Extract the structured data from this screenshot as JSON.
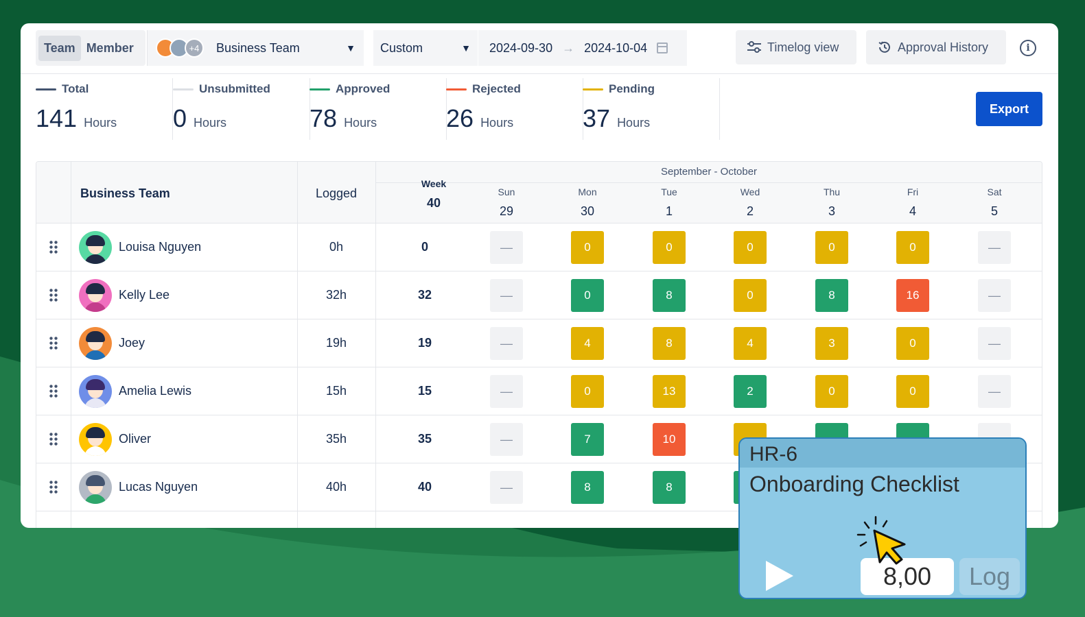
{
  "colors": {
    "background": "#0b5a33",
    "accent": "#0c52cc",
    "approved": "#22a06b",
    "pending": "#e2b203",
    "rejected": "#f15b35",
    "total": "#44546f",
    "unsubmitted": "#dcdfe4"
  },
  "toolbar": {
    "view_toggle": [
      "Team",
      "Member"
    ],
    "team_select": {
      "more_count": "+4",
      "label": "Business Team"
    },
    "range_select": "Custom",
    "date_start": "2024-09-30",
    "date_end": "2024-10-04",
    "timelog_view": "Timelog view",
    "approval_history": "Approval History"
  },
  "stats": [
    {
      "label": "Total",
      "value": "141",
      "unit": "Hours",
      "color": "#44546f"
    },
    {
      "label": "Unsubmitted",
      "value": "0",
      "unit": "Hours",
      "color": "#dcdfe4"
    },
    {
      "label": "Approved",
      "value": "78",
      "unit": "Hours",
      "color": "#22a06b"
    },
    {
      "label": "Rejected",
      "value": "26",
      "unit": "Hours",
      "color": "#f15b35"
    },
    {
      "label": "Pending",
      "value": "37",
      "unit": "Hours",
      "color": "#e2b203"
    }
  ],
  "export_label": "Export",
  "table": {
    "team_header": "Business Team",
    "logged_header": "Logged",
    "month_header": "September - October",
    "columns": [
      {
        "name": "Week",
        "num": "40"
      },
      {
        "name": "Sun",
        "num": "29"
      },
      {
        "name": "Mon",
        "num": "30"
      },
      {
        "name": "Tue",
        "num": "1"
      },
      {
        "name": "Wed",
        "num": "2"
      },
      {
        "name": "Thu",
        "num": "3"
      },
      {
        "name": "Fri",
        "num": "4"
      },
      {
        "name": "Sat",
        "num": "5"
      }
    ],
    "rows": [
      {
        "name": "Louisa Nguyen",
        "logged": "0h",
        "week": "0",
        "cells": [
          [
            "—",
            "empty"
          ],
          [
            "0",
            "y"
          ],
          [
            "0",
            "y"
          ],
          [
            "0",
            "y"
          ],
          [
            "0",
            "y"
          ],
          [
            "0",
            "y"
          ],
          [
            "—",
            "empty"
          ]
        ]
      },
      {
        "name": "Kelly Lee",
        "logged": "32h",
        "week": "32",
        "cells": [
          [
            "—",
            "empty"
          ],
          [
            "0",
            "g"
          ],
          [
            "8",
            "g"
          ],
          [
            "0",
            "y"
          ],
          [
            "8",
            "g"
          ],
          [
            "16",
            "r"
          ],
          [
            "—",
            "empty"
          ]
        ]
      },
      {
        "name": "Joey",
        "logged": "19h",
        "week": "19",
        "cells": [
          [
            "—",
            "empty"
          ],
          [
            "4",
            "y"
          ],
          [
            "8",
            "y"
          ],
          [
            "4",
            "y"
          ],
          [
            "3",
            "y"
          ],
          [
            "0",
            "y"
          ],
          [
            "—",
            "empty"
          ]
        ]
      },
      {
        "name": "Amelia Lewis",
        "logged": "15h",
        "week": "15",
        "cells": [
          [
            "—",
            "empty"
          ],
          [
            "0",
            "y"
          ],
          [
            "13",
            "y"
          ],
          [
            "2",
            "g"
          ],
          [
            "0",
            "y"
          ],
          [
            "0",
            "y"
          ],
          [
            "—",
            "empty"
          ]
        ]
      },
      {
        "name": "Oliver",
        "logged": "35h",
        "week": "35",
        "cells": [
          [
            "—",
            "empty"
          ],
          [
            "7",
            "g"
          ],
          [
            "10",
            "r"
          ],
          [
            "",
            "y"
          ],
          [
            "",
            "g"
          ],
          [
            "",
            "g"
          ],
          [
            "",
            "empty"
          ]
        ]
      },
      {
        "name": "Lucas Nguyen",
        "logged": "40h",
        "week": "40",
        "cells": [
          [
            "—",
            "empty"
          ],
          [
            "8",
            "g"
          ],
          [
            "8",
            "g"
          ],
          [
            "",
            "g"
          ],
          [
            "",
            "empty"
          ],
          [
            "",
            "empty"
          ],
          [
            "",
            "empty"
          ]
        ]
      }
    ]
  },
  "popup": {
    "issue_key": "HR-6",
    "issue_title": "Onboarding Checklist",
    "hours_value": "8,00",
    "log_label": "Log"
  }
}
